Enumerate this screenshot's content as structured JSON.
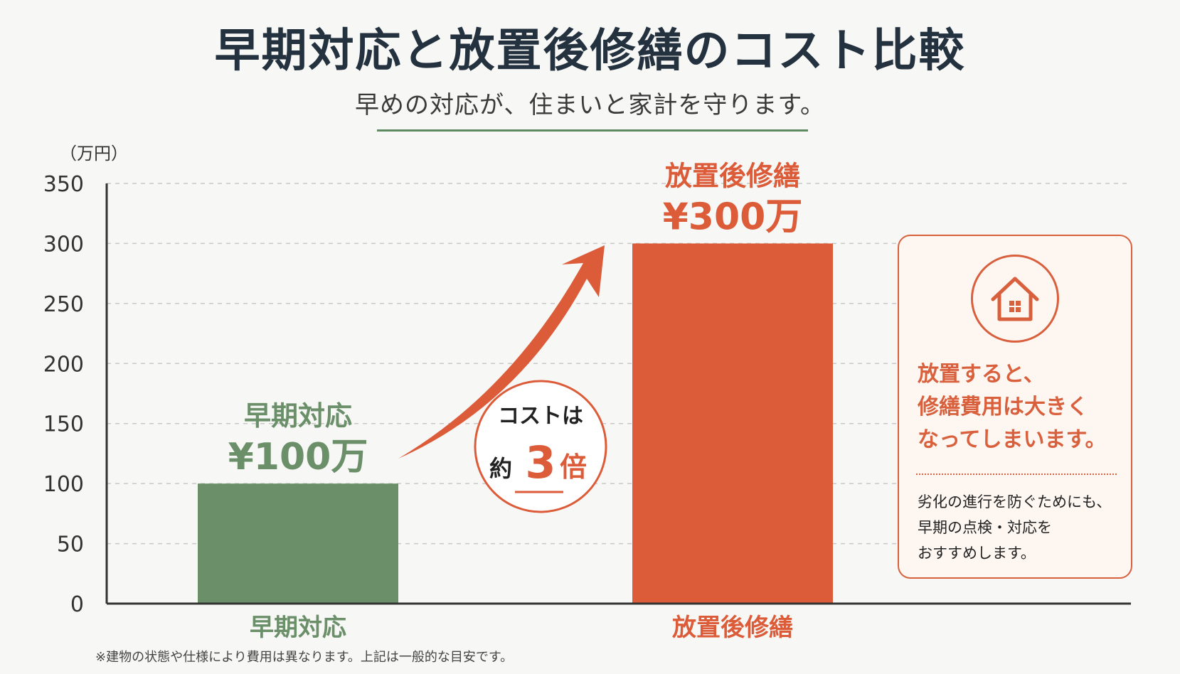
{
  "header": {
    "title": "早期対応と放置後修繕のコスト比較",
    "subtitle": "早めの対応が、住まいと家計を守ります。"
  },
  "colors": {
    "early": "#6a8f69",
    "neglect": "#dc5b38",
    "accent_text": "#d9603d",
    "axis": "#333333",
    "grid": "#c8c8c8"
  },
  "chart_data": {
    "type": "bar",
    "categories": [
      "早期対応",
      "放置後修繕"
    ],
    "values": [
      100,
      300
    ],
    "unit_label": "（万円）",
    "ylim": [
      0,
      350
    ],
    "yticks": [
      0,
      50,
      100,
      150,
      200,
      250,
      300,
      350
    ],
    "grid": true,
    "bar_labels": [
      {
        "name": "早期対応",
        "value": "¥100万"
      },
      {
        "name": "放置後修繕",
        "value": "¥300万"
      }
    ],
    "annotation": {
      "line1": "コストは",
      "prefix": "約",
      "number": "3",
      "suffix": "倍"
    }
  },
  "info_box": {
    "icon": "house-icon",
    "lead_lines": [
      "放置すると、",
      "修繕費用は大きく",
      "なってしまいます。"
    ],
    "note_lines": [
      "劣化の進行を防ぐためにも、",
      "早期の点検・対応を",
      "おすすめします。"
    ]
  },
  "footnote": "※建物の状態や仕様により費用は異なります。上記は一般的な目安です。"
}
